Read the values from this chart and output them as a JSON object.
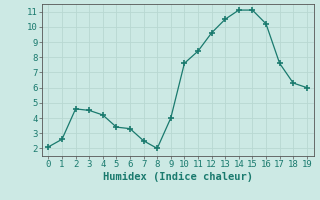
{
  "x": [
    0,
    1,
    2,
    3,
    4,
    5,
    6,
    7,
    8,
    9,
    10,
    11,
    12,
    13,
    14,
    15,
    16,
    17,
    18,
    19
  ],
  "y": [
    2.1,
    2.6,
    4.6,
    4.5,
    4.2,
    3.4,
    3.3,
    2.5,
    2.0,
    4.0,
    7.6,
    8.4,
    9.6,
    10.5,
    11.1,
    11.1,
    10.2,
    7.6,
    6.3,
    6.0
  ],
  "line_color": "#1a7a6e",
  "marker": "+",
  "marker_size": 4,
  "bg_color": "#cce9e4",
  "grid_color": "#b8d8d2",
  "xlabel": "Humidex (Indice chaleur)",
  "xlim": [
    -0.5,
    19.5
  ],
  "ylim": [
    1.5,
    11.5
  ],
  "yticks": [
    2,
    3,
    4,
    5,
    6,
    7,
    8,
    9,
    10,
    11
  ],
  "xticks": [
    0,
    1,
    2,
    3,
    4,
    5,
    6,
    7,
    8,
    9,
    10,
    11,
    12,
    13,
    14,
    15,
    16,
    17,
    18,
    19
  ],
  "tick_fontsize": 6.5,
  "xlabel_fontsize": 7.5
}
